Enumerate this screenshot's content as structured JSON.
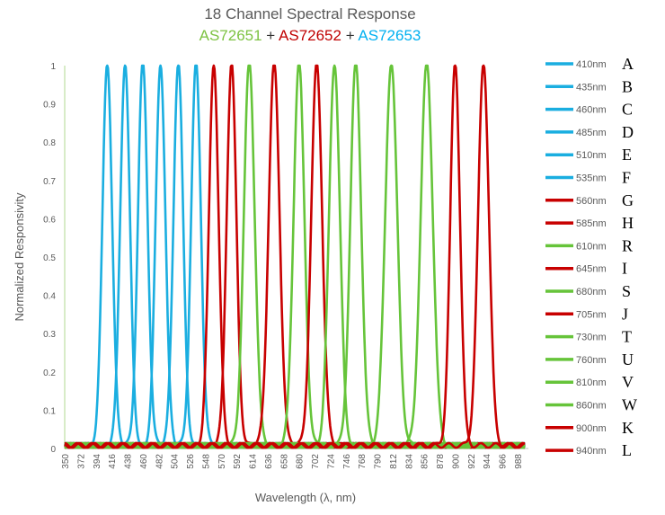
{
  "chart_data": {
    "type": "line",
    "title": "18 Channel Spectral Response",
    "subtitle_parts": [
      {
        "text": "AS72651",
        "color": "#7dc242"
      },
      {
        "text": " + ",
        "color": "#333333"
      },
      {
        "text": "AS72652",
        "color": "#c00000"
      },
      {
        "text": " + ",
        "color": "#333333"
      },
      {
        "text": "AS72653",
        "color": "#00b0f0"
      }
    ],
    "xlabel": "Wavelength (λ, nm)",
    "ylabel": "Normalized Responsivity",
    "xlim": [
      350,
      998
    ],
    "ylim": [
      0,
      1
    ],
    "x_ticks": [
      350,
      372,
      394,
      416,
      438,
      460,
      482,
      504,
      526,
      548,
      570,
      592,
      614,
      636,
      658,
      680,
      702,
      724,
      746,
      768,
      790,
      812,
      834,
      856,
      878,
      900,
      922,
      944,
      966,
      988
    ],
    "y_ticks": [
      "0",
      "0.1",
      "0.2",
      "0.3",
      "0.4",
      "0.5",
      "0.6",
      "0.7",
      "0.8",
      "0.9",
      "1"
    ],
    "grid": false,
    "legend_placement": "right",
    "series": [
      {
        "name": "410nm",
        "letter": "A",
        "peak": 410,
        "fwhm": 16,
        "color": "#1aaee0"
      },
      {
        "name": "435nm",
        "letter": "B",
        "peak": 435,
        "fwhm": 16,
        "color": "#1aaee0"
      },
      {
        "name": "460nm",
        "letter": "C",
        "peak": 460,
        "fwhm": 16,
        "color": "#1aaee0"
      },
      {
        "name": "485nm",
        "letter": "D",
        "peak": 485,
        "fwhm": 16,
        "color": "#1aaee0"
      },
      {
        "name": "510nm",
        "letter": "E",
        "peak": 510,
        "fwhm": 16,
        "color": "#1aaee0"
      },
      {
        "name": "535nm",
        "letter": "F",
        "peak": 535,
        "fwhm": 16,
        "color": "#1aaee0"
      },
      {
        "name": "560nm",
        "letter": "G",
        "peak": 560,
        "fwhm": 16,
        "color": "#c80000"
      },
      {
        "name": "585nm",
        "letter": "H",
        "peak": 585,
        "fwhm": 16,
        "color": "#c80000"
      },
      {
        "name": "610nm",
        "letter": "R",
        "peak": 610,
        "fwhm": 18,
        "color": "#66c43a"
      },
      {
        "name": "645nm",
        "letter": "I",
        "peak": 645,
        "fwhm": 18,
        "color": "#c80000"
      },
      {
        "name": "680nm",
        "letter": "S",
        "peak": 680,
        "fwhm": 18,
        "color": "#66c43a"
      },
      {
        "name": "705nm",
        "letter": "J",
        "peak": 705,
        "fwhm": 18,
        "color": "#c80000"
      },
      {
        "name": "730nm",
        "letter": "T",
        "peak": 730,
        "fwhm": 18,
        "color": "#66c43a"
      },
      {
        "name": "760nm",
        "letter": "U",
        "peak": 760,
        "fwhm": 18,
        "color": "#66c43a"
      },
      {
        "name": "810nm",
        "letter": "V",
        "peak": 810,
        "fwhm": 20,
        "color": "#66c43a"
      },
      {
        "name": "860nm",
        "letter": "W",
        "peak": 860,
        "fwhm": 20,
        "color": "#66c43a"
      },
      {
        "name": "900nm",
        "letter": "K",
        "peak": 900,
        "fwhm": 16,
        "color": "#c80000"
      },
      {
        "name": "940nm",
        "letter": "L",
        "peak": 940,
        "fwhm": 18,
        "color": "#c80000"
      }
    ]
  }
}
